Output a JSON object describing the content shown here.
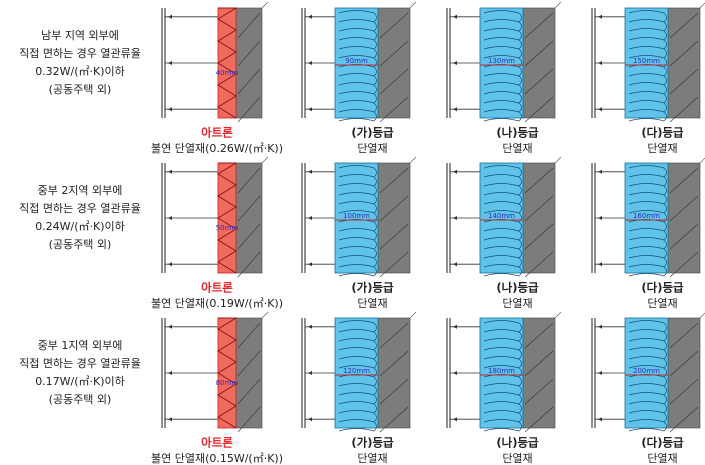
{
  "rows": [
    {
      "label": [
        "남부 지역 외부에",
        "직접 면하는 경우 열관류율",
        "0.32W/(㎡·K)이하",
        "(공동주택 외)"
      ],
      "panels": [
        {
          "title": "아트론",
          "subtitle": "불연 단열재(0.26W/(㎡·K))",
          "thickness": "40mm"
        },
        {
          "title": "(가)등급",
          "subtitle": "단열재",
          "thickness": "90mm"
        },
        {
          "title": "(나)등급",
          "subtitle": "단열재",
          "thickness": "130mm"
        },
        {
          "title": "(다)등급",
          "subtitle": "단열재",
          "thickness": "150mm"
        }
      ]
    },
    {
      "label": [
        "중부 2지역 외부에",
        "직접 면하는 경우 열관류율",
        "0.24W/(㎡·K)이하",
        "(공동주택 외)"
      ],
      "panels": [
        {
          "title": "아트론",
          "subtitle": "불연 단열재(0.19W/(㎡·K))",
          "thickness": "50mm"
        },
        {
          "title": "(가)등급",
          "subtitle": "단열재",
          "thickness": "100mm"
        },
        {
          "title": "(나)등급",
          "subtitle": "단열재",
          "thickness": "140mm"
        },
        {
          "title": "(다)등급",
          "subtitle": "단열재",
          "thickness": "160mm"
        }
      ]
    },
    {
      "label": [
        "중부 1지역 외부에",
        "직접 면하는 경우 열관류율",
        "0.17W/(㎡·K)이하",
        "(공동주택 외)"
      ],
      "panels": [
        {
          "title": "아트론",
          "subtitle": "불연 단열재(0.15W/(㎡·K))",
          "thickness": "80mm"
        },
        {
          "title": "(가)등급",
          "subtitle": "단열재",
          "thickness": "120mm"
        },
        {
          "title": "(나)등급",
          "subtitle": "단열재",
          "thickness": "180mm"
        },
        {
          "title": "(다)등급",
          "subtitle": "단열재",
          "thickness": "200mm"
        }
      ]
    }
  ]
}
